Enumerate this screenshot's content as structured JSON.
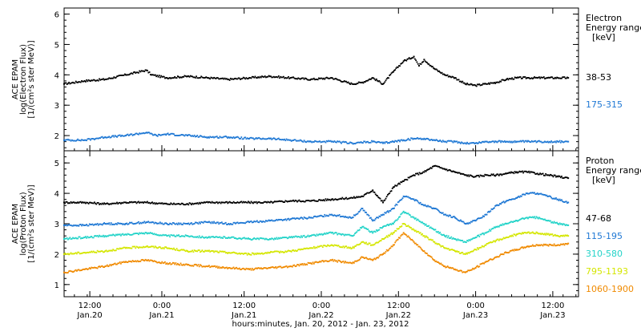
{
  "chart_data": [
    {
      "type": "scatter",
      "ylabel_lines": [
        "ACE EPAM",
        "log(Electron Flux)",
        "[1/(cm²s ster MeV)]"
      ],
      "ylim": [
        1.5,
        6.2
      ],
      "yticks": [
        2,
        3,
        4,
        5,
        6
      ],
      "xlim": [
        0,
        100
      ],
      "legend_title_lines": [
        "Electron",
        "Energy range",
        "[keV]"
      ],
      "series": [
        {
          "name": "38-53",
          "color": "#000000",
          "points": [
            [
              0,
              3.7
            ],
            [
              4,
              3.8
            ],
            [
              8,
              3.85
            ],
            [
              12,
              4.0
            ],
            [
              16,
              4.15
            ],
            [
              17,
              4.0
            ],
            [
              20,
              3.9
            ],
            [
              24,
              3.95
            ],
            [
              28,
              3.9
            ],
            [
              32,
              3.85
            ],
            [
              36,
              3.9
            ],
            [
              40,
              3.95
            ],
            [
              44,
              3.9
            ],
            [
              48,
              3.85
            ],
            [
              52,
              3.9
            ],
            [
              56,
              3.7
            ],
            [
              58,
              3.75
            ],
            [
              60,
              3.9
            ],
            [
              62,
              3.7
            ],
            [
              64,
              4.1
            ],
            [
              66,
              4.45
            ],
            [
              68,
              4.6
            ],
            [
              69,
              4.3
            ],
            [
              70,
              4.5
            ],
            [
              72,
              4.2
            ],
            [
              74,
              4.0
            ],
            [
              76,
              3.9
            ],
            [
              78,
              3.7
            ],
            [
              80,
              3.65
            ],
            [
              82,
              3.7
            ],
            [
              84,
              3.75
            ],
            [
              86,
              3.85
            ],
            [
              88,
              3.9
            ],
            [
              90,
              3.9
            ],
            [
              92,
              3.9
            ],
            [
              94,
              3.9
            ],
            [
              96,
              3.9
            ],
            [
              98,
              3.9
            ]
          ]
        },
        {
          "name": "175-315",
          "color": "#1f78d4",
          "points": [
            [
              0,
              1.85
            ],
            [
              4,
              1.85
            ],
            [
              8,
              1.95
            ],
            [
              12,
              2.0
            ],
            [
              16,
              2.1
            ],
            [
              18,
              2.0
            ],
            [
              20,
              2.05
            ],
            [
              24,
              2.0
            ],
            [
              28,
              1.95
            ],
            [
              32,
              1.95
            ],
            [
              36,
              1.9
            ],
            [
              40,
              1.9
            ],
            [
              44,
              1.85
            ],
            [
              48,
              1.8
            ],
            [
              52,
              1.8
            ],
            [
              56,
              1.75
            ],
            [
              60,
              1.8
            ],
            [
              62,
              1.75
            ],
            [
              64,
              1.8
            ],
            [
              66,
              1.85
            ],
            [
              68,
              1.9
            ],
            [
              70,
              1.9
            ],
            [
              72,
              1.85
            ],
            [
              74,
              1.8
            ],
            [
              76,
              1.8
            ],
            [
              78,
              1.75
            ],
            [
              80,
              1.75
            ],
            [
              82,
              1.8
            ],
            [
              84,
              1.8
            ],
            [
              86,
              1.8
            ],
            [
              88,
              1.8
            ],
            [
              90,
              1.8
            ],
            [
              92,
              1.8
            ],
            [
              94,
              1.8
            ],
            [
              96,
              1.8
            ],
            [
              98,
              1.8
            ]
          ]
        }
      ]
    },
    {
      "type": "scatter",
      "ylabel_lines": [
        "ACE EPAM",
        "log(Proton Flux)",
        "[1/(cm²s ster MeV)]"
      ],
      "ylim": [
        0.6,
        5.4
      ],
      "yticks": [
        1,
        2,
        3,
        4,
        5
      ],
      "xlim": [
        0,
        100
      ],
      "legend_title_lines": [
        "Proton",
        "Energy range",
        "[keV]"
      ],
      "series": [
        {
          "name": "47-68",
          "color": "#000000",
          "points": [
            [
              0,
              3.7
            ],
            [
              4,
              3.7
            ],
            [
              8,
              3.65
            ],
            [
              12,
              3.7
            ],
            [
              16,
              3.7
            ],
            [
              20,
              3.65
            ],
            [
              24,
              3.65
            ],
            [
              28,
              3.7
            ],
            [
              32,
              3.7
            ],
            [
              36,
              3.7
            ],
            [
              40,
              3.7
            ],
            [
              44,
              3.75
            ],
            [
              48,
              3.75
            ],
            [
              52,
              3.8
            ],
            [
              56,
              3.85
            ],
            [
              58,
              3.9
            ],
            [
              60,
              4.1
            ],
            [
              62,
              3.7
            ],
            [
              64,
              4.2
            ],
            [
              66,
              4.4
            ],
            [
              68,
              4.6
            ],
            [
              70,
              4.7
            ],
            [
              72,
              4.9
            ],
            [
              74,
              4.8
            ],
            [
              76,
              4.7
            ],
            [
              78,
              4.6
            ],
            [
              80,
              4.55
            ],
            [
              82,
              4.6
            ],
            [
              84,
              4.6
            ],
            [
              86,
              4.65
            ],
            [
              88,
              4.7
            ],
            [
              90,
              4.7
            ],
            [
              92,
              4.65
            ],
            [
              94,
              4.6
            ],
            [
              96,
              4.55
            ],
            [
              98,
              4.5
            ]
          ]
        },
        {
          "name": "115-195",
          "color": "#1f78d4",
          "points": [
            [
              0,
              2.95
            ],
            [
              4,
              2.95
            ],
            [
              8,
              3.0
            ],
            [
              12,
              3.0
            ],
            [
              16,
              3.05
            ],
            [
              20,
              3.0
            ],
            [
              24,
              3.0
            ],
            [
              28,
              3.05
            ],
            [
              32,
              3.0
            ],
            [
              36,
              3.05
            ],
            [
              40,
              3.1
            ],
            [
              44,
              3.15
            ],
            [
              48,
              3.2
            ],
            [
              52,
              3.3
            ],
            [
              56,
              3.2
            ],
            [
              58,
              3.5
            ],
            [
              60,
              3.1
            ],
            [
              62,
              3.3
            ],
            [
              64,
              3.5
            ],
            [
              66,
              3.9
            ],
            [
              68,
              3.8
            ],
            [
              70,
              3.6
            ],
            [
              72,
              3.5
            ],
            [
              74,
              3.3
            ],
            [
              76,
              3.2
            ],
            [
              78,
              3.0
            ],
            [
              80,
              3.1
            ],
            [
              82,
              3.3
            ],
            [
              84,
              3.6
            ],
            [
              86,
              3.75
            ],
            [
              88,
              3.85
            ],
            [
              90,
              4.0
            ],
            [
              92,
              4.0
            ],
            [
              94,
              3.9
            ],
            [
              96,
              3.8
            ],
            [
              98,
              3.7
            ]
          ]
        },
        {
          "name": "310-580",
          "color": "#22d3c8",
          "points": [
            [
              0,
              2.5
            ],
            [
              4,
              2.55
            ],
            [
              8,
              2.6
            ],
            [
              12,
              2.65
            ],
            [
              16,
              2.7
            ],
            [
              20,
              2.6
            ],
            [
              24,
              2.6
            ],
            [
              28,
              2.55
            ],
            [
              32,
              2.55
            ],
            [
              36,
              2.5
            ],
            [
              40,
              2.5
            ],
            [
              44,
              2.55
            ],
            [
              48,
              2.6
            ],
            [
              52,
              2.7
            ],
            [
              56,
              2.6
            ],
            [
              58,
              2.9
            ],
            [
              60,
              2.7
            ],
            [
              62,
              2.9
            ],
            [
              64,
              3.0
            ],
            [
              66,
              3.4
            ],
            [
              68,
              3.2
            ],
            [
              70,
              3.0
            ],
            [
              72,
              2.8
            ],
            [
              74,
              2.6
            ],
            [
              76,
              2.5
            ],
            [
              78,
              2.4
            ],
            [
              80,
              2.55
            ],
            [
              82,
              2.7
            ],
            [
              84,
              2.9
            ],
            [
              86,
              3.0
            ],
            [
              88,
              3.1
            ],
            [
              90,
              3.2
            ],
            [
              92,
              3.2
            ],
            [
              94,
              3.1
            ],
            [
              96,
              3.0
            ],
            [
              98,
              2.95
            ]
          ]
        },
        {
          "name": "795-1193",
          "color": "#d4e600",
          "points": [
            [
              0,
              2.0
            ],
            [
              4,
              2.05
            ],
            [
              8,
              2.1
            ],
            [
              12,
              2.2
            ],
            [
              16,
              2.25
            ],
            [
              20,
              2.2
            ],
            [
              24,
              2.1
            ],
            [
              28,
              2.1
            ],
            [
              32,
              2.05
            ],
            [
              36,
              2.0
            ],
            [
              40,
              2.05
            ],
            [
              44,
              2.1
            ],
            [
              48,
              2.2
            ],
            [
              52,
              2.3
            ],
            [
              56,
              2.2
            ],
            [
              58,
              2.4
            ],
            [
              60,
              2.3
            ],
            [
              62,
              2.5
            ],
            [
              64,
              2.7
            ],
            [
              66,
              3.0
            ],
            [
              68,
              2.8
            ],
            [
              70,
              2.6
            ],
            [
              72,
              2.4
            ],
            [
              74,
              2.2
            ],
            [
              76,
              2.1
            ],
            [
              78,
              2.0
            ],
            [
              80,
              2.15
            ],
            [
              82,
              2.3
            ],
            [
              84,
              2.45
            ],
            [
              86,
              2.55
            ],
            [
              88,
              2.65
            ],
            [
              90,
              2.7
            ],
            [
              92,
              2.7
            ],
            [
              94,
              2.65
            ],
            [
              96,
              2.6
            ],
            [
              98,
              2.6
            ]
          ]
        },
        {
          "name": "1060-1900",
          "color": "#f08a00",
          "points": [
            [
              0,
              1.4
            ],
            [
              4,
              1.5
            ],
            [
              8,
              1.6
            ],
            [
              12,
              1.75
            ],
            [
              16,
              1.8
            ],
            [
              20,
              1.7
            ],
            [
              24,
              1.65
            ],
            [
              28,
              1.6
            ],
            [
              32,
              1.55
            ],
            [
              36,
              1.5
            ],
            [
              40,
              1.55
            ],
            [
              44,
              1.6
            ],
            [
              48,
              1.7
            ],
            [
              52,
              1.8
            ],
            [
              56,
              1.7
            ],
            [
              58,
              1.9
            ],
            [
              60,
              1.8
            ],
            [
              62,
              2.0
            ],
            [
              64,
              2.3
            ],
            [
              66,
              2.7
            ],
            [
              68,
              2.4
            ],
            [
              70,
              2.1
            ],
            [
              72,
              1.8
            ],
            [
              74,
              1.6
            ],
            [
              76,
              1.5
            ],
            [
              78,
              1.4
            ],
            [
              80,
              1.55
            ],
            [
              82,
              1.75
            ],
            [
              84,
              1.9
            ],
            [
              86,
              2.05
            ],
            [
              88,
              2.15
            ],
            [
              90,
              2.25
            ],
            [
              92,
              2.3
            ],
            [
              94,
              2.3
            ],
            [
              96,
              2.3
            ],
            [
              98,
              2.35
            ]
          ]
        }
      ]
    }
  ],
  "xaxis": {
    "ticks": [
      {
        "x": 5,
        "time": "12:00",
        "date": "Jan.20"
      },
      {
        "x": 19,
        "time": "0:00",
        "date": "Jan.21"
      },
      {
        "x": 35,
        "time": "12:00",
        "date": "Jan.21"
      },
      {
        "x": 50,
        "time": "0:00",
        "date": "Jan.22"
      },
      {
        "x": 65,
        "time": "12:00",
        "date": "Jan.22"
      },
      {
        "x": 80,
        "time": "0:00",
        "date": "Jan.23"
      },
      {
        "x": 95,
        "time": "12:00",
        "date": "Jan.23"
      }
    ],
    "label": "hours:minutes, Jan. 20, 2012 - Jan. 23, 2012"
  }
}
